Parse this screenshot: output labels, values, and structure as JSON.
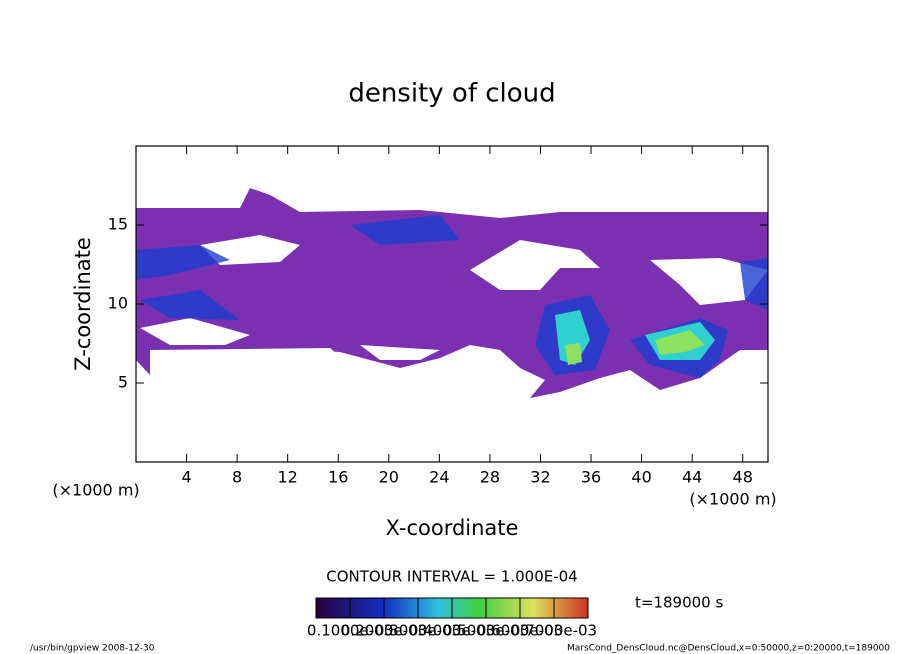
{
  "chart_data": {
    "type": "contour",
    "title": "density of cloud",
    "x_label": "X-coordinate",
    "y_label": "Z-coordinate",
    "x_unit": "(×1000 m)",
    "y_unit": "(×1000 m)",
    "xlim": [
      0,
      50
    ],
    "xticks": [
      4,
      8,
      12,
      16,
      20,
      24,
      28,
      32,
      36,
      40,
      44,
      48
    ],
    "ylim": [
      0,
      20
    ],
    "yticks": [
      5,
      10,
      15
    ],
    "contour_note": "CONTOUR INTERVAL = 1.000E-04",
    "time_label": "t=189000 s",
    "levels": [
      {
        "value": 0.0001,
        "label": "0.1000e-03"
      },
      {
        "value": 0.0002,
        "label": "0.2000e-03"
      },
      {
        "value": 0.0003,
        "label": "0.3000e-03"
      },
      {
        "value": 0.0004,
        "label": "0.4000e-03"
      },
      {
        "value": 0.0005,
        "label": "0.5000e-03"
      },
      {
        "value": 0.0006,
        "label": "0.6000e-03"
      },
      {
        "value": 0.0007,
        "label": "0.7000e-03"
      }
    ],
    "footer_left": "/usr/bin/gpview   2008-12-30",
    "footer_right": "MarsCond_DensCloud.nc@DensCloud,x=0:50000,z=0:20000,t=189000"
  }
}
